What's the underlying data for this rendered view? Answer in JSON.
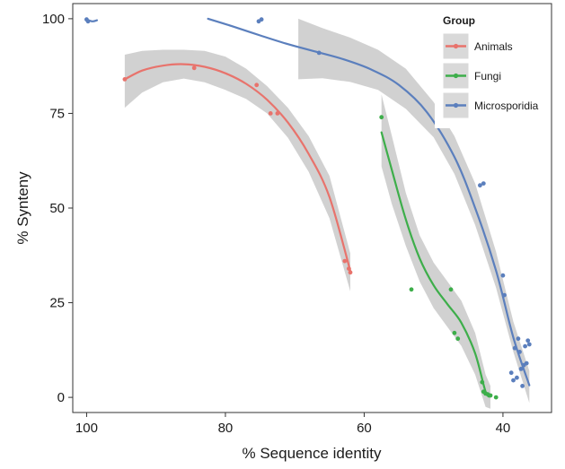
{
  "chart_data": {
    "type": "scatter",
    "xlabel": "% Sequence identity",
    "ylabel": "% Synteny",
    "x_reversed": true,
    "xlim": [
      102,
      33
    ],
    "ylim": [
      -4,
      104
    ],
    "x_ticks": [
      100,
      80,
      60,
      40
    ],
    "x_tick_labels": [
      "100",
      "80",
      "60",
      "40"
    ],
    "y_ticks": [
      0,
      25,
      50,
      75,
      100
    ],
    "y_tick_labels": [
      "0",
      "25",
      "50",
      "75",
      "100"
    ],
    "grid": false,
    "legend": {
      "title": "Group",
      "position": "top-right",
      "entries": [
        "Animals",
        "Fungi",
        "Microsporidia"
      ]
    },
    "series": [
      {
        "name": "Animals",
        "color": "#e8736c",
        "points": [
          [
            94.5,
            84
          ],
          [
            84.5,
            87
          ],
          [
            75.5,
            82.5
          ],
          [
            73.5,
            75
          ],
          [
            72.5,
            75
          ],
          [
            62.8,
            36
          ],
          [
            62.2,
            34
          ],
          [
            62,
            33
          ]
        ],
        "smooth": [
          [
            94.5,
            84
          ],
          [
            92,
            86.3
          ],
          [
            89,
            87.6
          ],
          [
            86,
            88
          ],
          [
            83,
            87.3
          ],
          [
            80,
            85.6
          ],
          [
            77,
            82.8
          ],
          [
            74,
            78.6
          ],
          [
            71,
            72.6
          ],
          [
            68,
            64.3
          ],
          [
            65,
            52.9
          ],
          [
            62,
            33.4
          ]
        ],
        "band_upper": [
          [
            94.5,
            90.5
          ],
          [
            92,
            91.5
          ],
          [
            89,
            91.8
          ],
          [
            86,
            91.8
          ],
          [
            83,
            91.5
          ],
          [
            80,
            90
          ],
          [
            77,
            86.8
          ],
          [
            74,
            82.2
          ],
          [
            71,
            76.5
          ],
          [
            68,
            69
          ],
          [
            65,
            58.5
          ],
          [
            62,
            38
          ]
        ],
        "band_lower": [
          [
            94.5,
            76.5
          ],
          [
            92,
            80.5
          ],
          [
            89,
            83.2
          ],
          [
            86,
            84.2
          ],
          [
            83,
            83.2
          ],
          [
            80,
            81.2
          ],
          [
            77,
            78.8
          ],
          [
            74,
            75
          ],
          [
            71,
            68.6
          ],
          [
            68,
            59.6
          ],
          [
            65,
            47.3
          ],
          [
            62,
            28
          ]
        ]
      },
      {
        "name": "Fungi",
        "color": "#3dae4a",
        "points": [
          [
            57.5,
            74
          ],
          [
            53.2,
            28.5
          ],
          [
            47.5,
            28.5
          ],
          [
            47,
            17
          ],
          [
            46.5,
            15.5
          ],
          [
            43,
            4
          ],
          [
            42.8,
            1.5
          ],
          [
            42.5,
            1
          ],
          [
            42.2,
            0.8
          ],
          [
            42,
            0.5
          ],
          [
            41.8,
            0.5
          ],
          [
            41,
            0
          ]
        ],
        "smooth": [
          [
            57.5,
            70
          ],
          [
            56,
            60
          ],
          [
            54,
            47
          ],
          [
            52,
            36.7
          ],
          [
            50,
            29.6
          ],
          [
            48,
            24.6
          ],
          [
            46,
            19.7
          ],
          [
            44,
            11.6
          ],
          [
            42.5,
            1.5
          ],
          [
            41.8,
            0.5
          ]
        ],
        "band_upper": [
          [
            57.5,
            80
          ],
          [
            56,
            69
          ],
          [
            54,
            54
          ],
          [
            52,
            42.8
          ],
          [
            50,
            35.6
          ],
          [
            48,
            30.6
          ],
          [
            46,
            25.5
          ],
          [
            44,
            17
          ],
          [
            42.5,
            6
          ],
          [
            41.8,
            3
          ]
        ],
        "band_lower": [
          [
            57.5,
            61
          ],
          [
            56,
            51
          ],
          [
            54,
            40
          ],
          [
            52,
            30.6
          ],
          [
            50,
            23.6
          ],
          [
            48,
            18.6
          ],
          [
            46,
            13.6
          ],
          [
            44,
            6
          ],
          [
            42.5,
            -2.5
          ],
          [
            41.8,
            -3
          ]
        ]
      },
      {
        "name": "Microsporidia",
        "color": "#5b7fbd",
        "points": [
          [
            100,
            99.8
          ],
          [
            99.8,
            99.3
          ],
          [
            75.2,
            99.3
          ],
          [
            74.8,
            99.8
          ],
          [
            66.5,
            91
          ],
          [
            43.3,
            56
          ],
          [
            42.8,
            56.5
          ],
          [
            40,
            32.2
          ],
          [
            39.8,
            27
          ],
          [
            38.8,
            6.5
          ],
          [
            38.5,
            4.5
          ],
          [
            38.3,
            13
          ],
          [
            38,
            5.2
          ],
          [
            37.8,
            15.5
          ],
          [
            37.6,
            12
          ],
          [
            37.4,
            7.5
          ],
          [
            37.2,
            3
          ],
          [
            37,
            8.5
          ],
          [
            36.8,
            13.5
          ],
          [
            36.6,
            9
          ],
          [
            36.4,
            15
          ],
          [
            36.2,
            14
          ]
        ],
        "smooth": [
          [
            98.5,
            99.6
          ],
          [
            99.2,
            99.3
          ],
          [
            100,
            99.8
          ]
        ],
        "smooth2": [
          [
            82.5,
            100
          ],
          [
            79,
            98
          ],
          [
            75,
            95.6
          ],
          [
            71,
            93.3
          ],
          [
            67,
            91.3
          ],
          [
            63,
            89.3
          ],
          [
            59,
            86.6
          ],
          [
            55,
            82.5
          ],
          [
            51,
            75.4
          ],
          [
            47,
            63.5
          ],
          [
            44,
            50
          ],
          [
            41,
            33.5
          ],
          [
            38.5,
            15.8
          ],
          [
            36.2,
            3.2
          ]
        ],
        "band_upper": [
          [
            69.5,
            100
          ],
          [
            66,
            97.5
          ],
          [
            62,
            95
          ],
          [
            58,
            91.8
          ],
          [
            54,
            86.8
          ],
          [
            50,
            78
          ],
          [
            47,
            69
          ],
          [
            44,
            56.5
          ],
          [
            41,
            38.5
          ],
          [
            38.5,
            20
          ],
          [
            36.2,
            7
          ]
        ],
        "band_lower": [
          [
            69.5,
            84
          ],
          [
            66,
            84.3
          ],
          [
            62,
            83.3
          ],
          [
            58,
            81.2
          ],
          [
            54,
            76.2
          ],
          [
            50,
            68.7
          ],
          [
            47,
            59
          ],
          [
            44,
            45.5
          ],
          [
            41,
            29
          ],
          [
            38.5,
            12
          ],
          [
            36.2,
            -1.5
          ]
        ]
      }
    ]
  }
}
